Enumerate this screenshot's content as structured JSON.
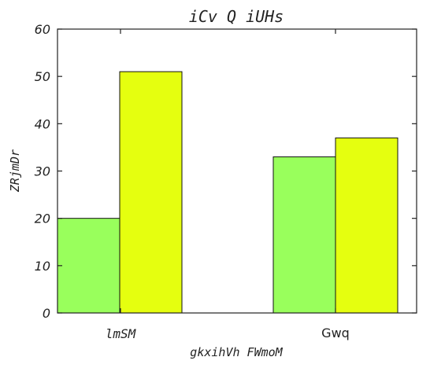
{
  "chart_data": {
    "type": "bar",
    "title": "iCv Q iUHs",
    "xlabel": "gkxihVh FWmoM",
    "ylabel": "ZRjmDr",
    "categories": [
      "lmSM",
      "Gwq"
    ],
    "series": [
      {
        "values": [
          20,
          33
        ],
        "color": "#99ff5c"
      },
      {
        "values": [
          51,
          37
        ],
        "color": "#e5ff0f"
      }
    ],
    "ylim": [
      0,
      60
    ],
    "yticks": [
      0,
      10,
      20,
      30,
      40,
      50,
      60
    ],
    "grid": false,
    "legend": "none"
  }
}
